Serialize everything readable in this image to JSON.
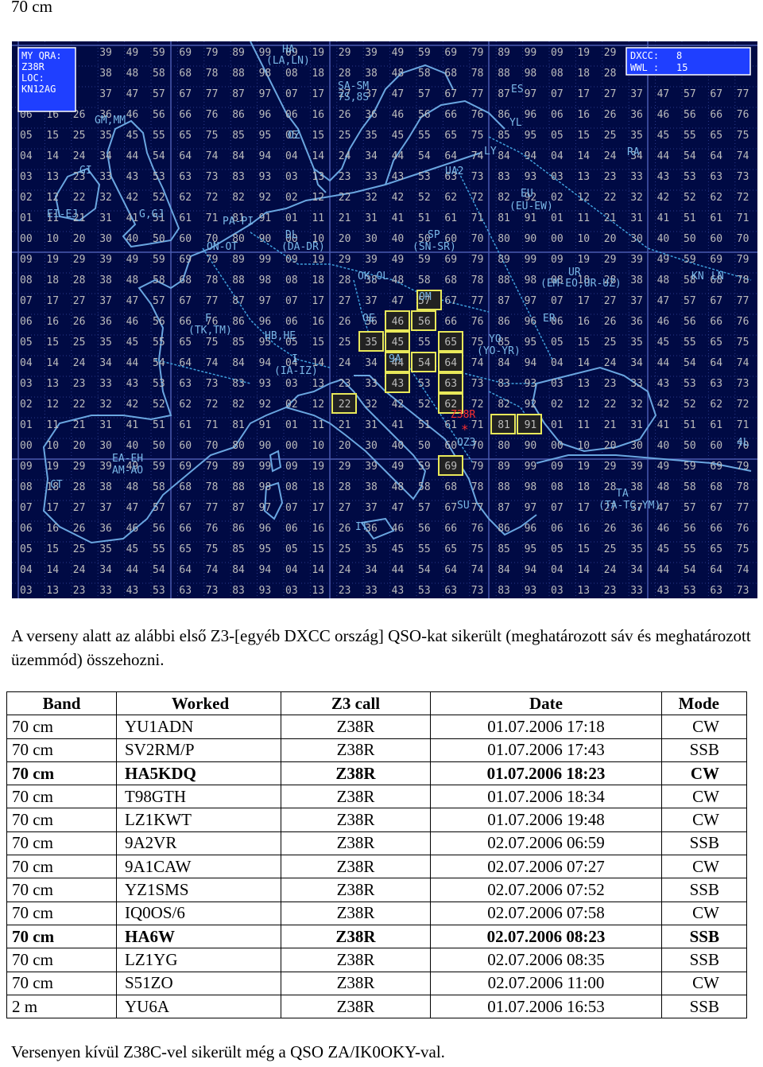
{
  "heading": "70 cm",
  "map": {
    "qra_label": "MY QRA:",
    "qra_call": "Z38R",
    "loc_label": "LOC:",
    "loc_value": "KN12AG",
    "dxcc_label": "DXCC:",
    "dxcc_value": "8",
    "wwl_label": "WWL :",
    "wwl_value": "15",
    "station_label": "Z38R",
    "colors": {
      "background": "#000a44",
      "grid": "#2a3a8a",
      "coast": "#6aa6e0",
      "text": "#c8c8c8",
      "box": "#e8e85a",
      "header_box": "#1f3fff"
    },
    "countries": [
      {
        "label": "HA",
        "x": 0
      },
      {
        "label": "GM, MM"
      },
      {
        "label": "GI"
      },
      {
        "label": "EI-EJ"
      },
      {
        "label": "G,GJ"
      },
      {
        "label": "PA-PI"
      },
      {
        "label": "ON-OT"
      },
      {
        "label": "DL"
      },
      {
        "label": "(DA-DR)"
      },
      {
        "label": "SP"
      },
      {
        "label": "(SN-SR)"
      },
      {
        "label": "F"
      },
      {
        "label": "(TK,TM)"
      },
      {
        "label": "HB,HE"
      },
      {
        "label": "I"
      },
      {
        "label": "(IA-IZ)"
      },
      {
        "label": "EA-EH"
      },
      {
        "label": "AM-AO"
      },
      {
        "label": "CT"
      },
      {
        "label": "IT"
      },
      {
        "label": "OE"
      },
      {
        "label": "OK, OL"
      },
      {
        "label": "OM"
      },
      {
        "label": "YO"
      },
      {
        "label": "(YO-YR)"
      },
      {
        "label": "ER"
      },
      {
        "label": "UR"
      },
      {
        "label": "(EM-EO,UR-UZ)"
      },
      {
        "label": "SM"
      },
      {
        "label": "7S,8S"
      },
      {
        "label": "ES"
      },
      {
        "label": "YL"
      },
      {
        "label": "LY"
      },
      {
        "label": "UA2"
      },
      {
        "label": "EU"
      },
      {
        "label": "(EU-EW)"
      },
      {
        "label": "RA"
      },
      {
        "label": "LA,LN"
      },
      {
        "label": "OZ"
      },
      {
        "label": "9A"
      },
      {
        "label": "OZ3"
      },
      {
        "label": "TA"
      },
      {
        "label": "(TA-TC,YM)"
      },
      {
        "label": "SU"
      },
      {
        "label": "KN"
      },
      {
        "label": "LN"
      },
      {
        "label": "4L"
      }
    ]
  },
  "intro": "A verseny alatt az alábbi első Z3-[egyéb DXCC ország] QSO-kat sikerült (meghatározott sáv és meghatározott üzemmód) összehozni.",
  "table": {
    "headers": [
      "Band",
      "Worked",
      "Z3 call",
      "Date",
      "Mode"
    ],
    "rows": [
      {
        "band": "70 cm",
        "worked": "YU1ADN",
        "call": "Z38R",
        "date": "01.07.2006 17:18",
        "mode": "CW",
        "bold": false
      },
      {
        "band": "70 cm",
        "worked": "SV2RM/P",
        "call": "Z38R",
        "date": "01.07.2006 17:43",
        "mode": "SSB",
        "bold": false
      },
      {
        "band": "70 cm",
        "worked": "HA5KDQ",
        "call": "Z38R",
        "date": "01.07.2006 18:23",
        "mode": "CW",
        "bold": true
      },
      {
        "band": "70 cm",
        "worked": "T98GTH",
        "call": "Z38R",
        "date": "01.07.2006 18:34",
        "mode": "CW",
        "bold": false
      },
      {
        "band": "70 cm",
        "worked": "LZ1KWT",
        "call": "Z38R",
        "date": "01.07.2006 19:48",
        "mode": "CW",
        "bold": false
      },
      {
        "band": "70 cm",
        "worked": "9A2VR",
        "call": "Z38R",
        "date": "02.07.2006 06:59",
        "mode": "SSB",
        "bold": false
      },
      {
        "band": "70 cm",
        "worked": "9A1CAW",
        "call": "Z38R",
        "date": "02.07.2006 07:27",
        "mode": "CW",
        "bold": false
      },
      {
        "band": "70 cm",
        "worked": "YZ1SMS",
        "call": "Z38R",
        "date": "02.07.2006 07:52",
        "mode": "SSB",
        "bold": false
      },
      {
        "band": "70 cm",
        "worked": "IQ0OS/6",
        "call": "Z38R",
        "date": "02.07.2006 07:58",
        "mode": "CW",
        "bold": false
      },
      {
        "band": "70 cm",
        "worked": "HA6W",
        "call": "Z38R",
        "date": "02.07.2006 08:23",
        "mode": "SSB",
        "bold": true
      },
      {
        "band": "70 cm",
        "worked": "LZ1YG",
        "call": "Z38R",
        "date": "02.07.2006 08:35",
        "mode": "SSB",
        "bold": false
      },
      {
        "band": "70 cm",
        "worked": "S51ZO",
        "call": "Z38R",
        "date": "02.07.2006 11:00",
        "mode": "CW",
        "bold": false
      },
      {
        "band": "2 m",
        "worked": "YU6A",
        "call": "Z38R",
        "date": "01.07.2006 16:53",
        "mode": "SSB",
        "bold": false
      }
    ]
  },
  "footer": "Versenyen kívül Z38C-vel sikerült még a QSO ZA/IK0OKY-val."
}
